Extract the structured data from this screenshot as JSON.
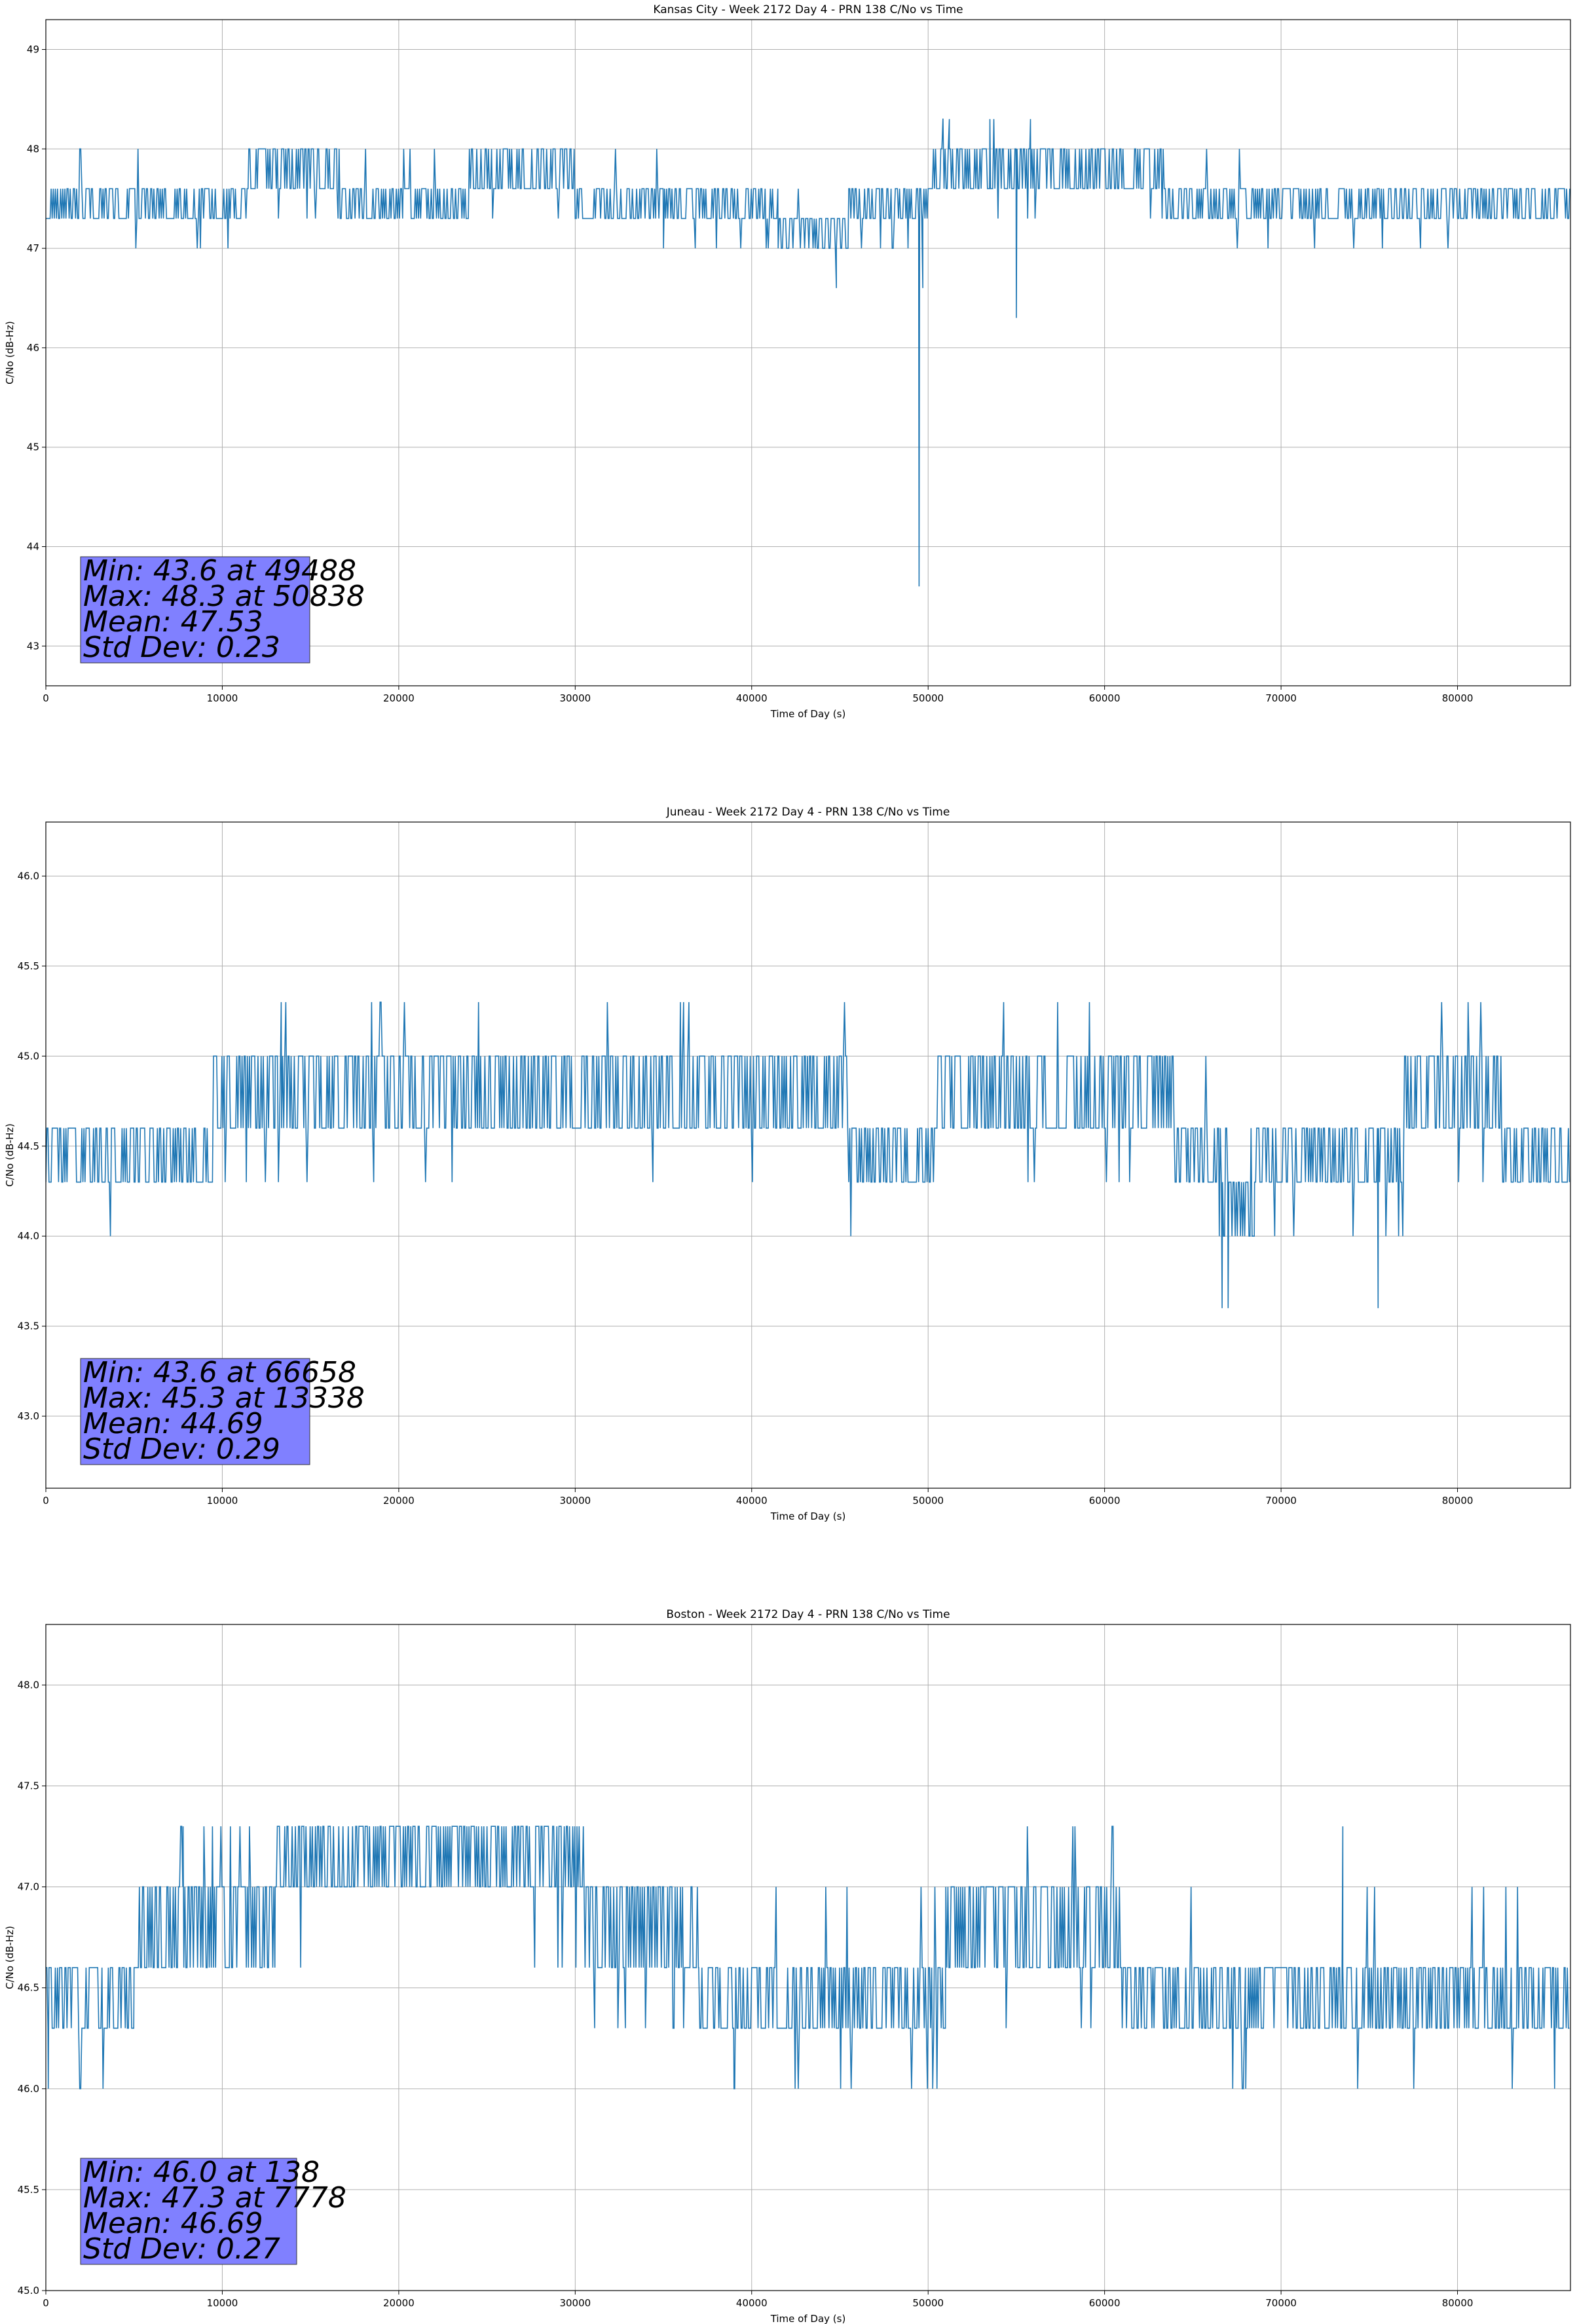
{
  "figure": {
    "line_color": "#1f77b4",
    "stats_box_color": "#8080ff"
  },
  "chart_data": [
    {
      "type": "line",
      "title": "Kansas City - Week 2172 Day 4 - PRN 138 C/No vs Time",
      "xlabel": "Time of Day (s)",
      "ylabel": "C/No (dB-Hz)",
      "xlim": [
        0,
        86400
      ],
      "ylim": [
        42.6,
        49.3
      ],
      "xticks": [
        0,
        10000,
        20000,
        30000,
        40000,
        50000,
        60000,
        70000,
        80000
      ],
      "xtick_labels": [
        "0",
        "10000",
        "20000",
        "30000",
        "40000",
        "50000",
        "60000",
        "70000",
        "80000"
      ],
      "yticks": [
        43,
        44,
        45,
        46,
        47,
        48,
        49
      ],
      "ytick_labels": [
        "43",
        "44",
        "45",
        "46",
        "47",
        "48",
        "49"
      ],
      "grid": true,
      "series": [
        {
          "color": "#1f77b4",
          "segments": [
            {
              "x": [
                0,
                11500
              ],
              "levels": [
                47.3,
                47.6
              ],
              "jumps_to": [
                47.0,
                48.0
              ]
            },
            {
              "x": [
                11500,
                16500
              ],
              "levels": [
                47.6,
                48.0
              ],
              "jumps_to": [
                47.3
              ]
            },
            {
              "x": [
                16500,
                24000
              ],
              "levels": [
                47.3,
                47.6
              ],
              "jumps_to": [
                48.0
              ]
            },
            {
              "x": [
                24000,
                30000
              ],
              "levels": [
                47.6,
                48.0
              ],
              "jumps_to": [
                47.3
              ]
            },
            {
              "x": [
                30000,
                35000
              ],
              "levels": [
                47.3,
                47.6
              ],
              "jumps_to": [
                48.0
              ]
            },
            {
              "x": [
                35000,
                41500
              ],
              "levels": [
                47.3,
                47.6
              ],
              "jumps_to": [
                47.0
              ]
            },
            {
              "x": [
                41500,
                45500
              ],
              "levels": [
                47.0,
                47.3
              ],
              "jumps_to": [
                47.6
              ]
            },
            {
              "x": [
                45500,
                50000
              ],
              "levels": [
                47.3,
                47.6
              ],
              "jumps_to": [
                47.0
              ]
            },
            {
              "x": [
                50000,
                63500
              ],
              "levels": [
                47.6,
                48.0
              ],
              "jumps_to": [
                47.3,
                48.3
              ]
            },
            {
              "x": [
                63500,
                86400
              ],
              "levels": [
                47.3,
                47.6
              ],
              "jumps_to": [
                47.0,
                48.0
              ]
            }
          ],
          "spikes": [
            {
              "x": 44800,
              "y": 46.6
            },
            {
              "x": 49488,
              "y": 43.6
            },
            {
              "x": 49700,
              "y": 46.6
            },
            {
              "x": 50838,
              "y": 48.3
            },
            {
              "x": 51200,
              "y": 48.3
            },
            {
              "x": 53500,
              "y": 48.3
            },
            {
              "x": 55000,
              "y": 46.3
            },
            {
              "x": 55800,
              "y": 48.3
            }
          ]
        }
      ],
      "annotations": [
        "Min: 43.6 at 49488",
        "Max: 48.3 at 50838",
        "Mean: 47.53",
        "Std Dev: 0.23"
      ]
    },
    {
      "type": "line",
      "title": "Juneau - Week 2172 Day 4 - PRN 138 C/No vs Time",
      "xlabel": "Time of Day (s)",
      "ylabel": "C/No (dB-Hz)",
      "xlim": [
        0,
        86400
      ],
      "ylim": [
        42.6,
        46.3
      ],
      "xticks": [
        0,
        10000,
        20000,
        30000,
        40000,
        50000,
        60000,
        70000,
        80000
      ],
      "xtick_labels": [
        "0",
        "10000",
        "20000",
        "30000",
        "40000",
        "50000",
        "60000",
        "70000",
        "80000"
      ],
      "yticks": [
        43.0,
        43.5,
        44.0,
        44.5,
        45.0,
        45.5,
        46.0
      ],
      "ytick_labels": [
        "43.0",
        "43.5",
        "44.0",
        "44.5",
        "45.0",
        "45.5",
        "46.0"
      ],
      "grid": true,
      "series": [
        {
          "color": "#1f77b4",
          "segments": [
            {
              "x": [
                0,
                5000
              ],
              "levels": [
                44.3,
                44.6
              ],
              "jumps_to": [
                44.0,
                45.0
              ]
            },
            {
              "x": [
                5000,
                9500
              ],
              "levels": [
                44.3,
                44.6
              ],
              "jumps_to": [
                45.0
              ]
            },
            {
              "x": [
                9500,
                13000
              ],
              "levels": [
                44.6,
                45.0
              ],
              "jumps_to": [
                44.3
              ]
            },
            {
              "x": [
                13000,
                29000
              ],
              "levels": [
                44.6,
                45.0
              ],
              "jumps_to": [
                45.3,
                44.3
              ]
            },
            {
              "x": [
                29000,
                45500
              ],
              "levels": [
                44.6,
                45.0
              ],
              "jumps_to": [
                44.3,
                45.3
              ]
            },
            {
              "x": [
                45500,
                50500
              ],
              "levels": [
                44.3,
                44.6
              ],
              "jumps_to": [
                45.0,
                44.0
              ]
            },
            {
              "x": [
                50500,
                64000
              ],
              "levels": [
                44.6,
                45.0
              ],
              "jumps_to": [
                45.3,
                44.3
              ]
            },
            {
              "x": [
                64000,
                66500
              ],
              "levels": [
                44.3,
                44.6
              ],
              "jumps_to": [
                45.0
              ]
            },
            {
              "x": [
                66500,
                68500
              ],
              "levels": [
                44.0,
                44.3
              ],
              "jumps_to": [
                44.6
              ]
            },
            {
              "x": [
                68500,
                77000
              ],
              "levels": [
                44.3,
                44.6
              ],
              "jumps_to": [
                44.0,
                45.0
              ]
            },
            {
              "x": [
                77000,
                82500
              ],
              "levels": [
                44.6,
                45.0
              ],
              "jumps_to": [
                45.3,
                44.3
              ]
            },
            {
              "x": [
                82500,
                86400
              ],
              "levels": [
                44.3,
                44.6
              ],
              "jumps_to": [
                45.0,
                44.0
              ]
            }
          ],
          "spikes": [
            {
              "x": 13338,
              "y": 45.3
            },
            {
              "x": 66658,
              "y": 43.6
            },
            {
              "x": 67000,
              "y": 43.6
            },
            {
              "x": 75500,
              "y": 43.6
            }
          ]
        }
      ],
      "annotations": [
        "Min: 43.6 at 66658",
        "Max: 45.3 at 13338",
        "Mean: 44.69",
        "Std Dev: 0.29"
      ]
    },
    {
      "type": "line",
      "title": "Boston - Week 2172 Day 4 - PRN 138 C/No vs Time",
      "xlabel": "Time of Day (s)",
      "ylabel": "C/No (dB-Hz)",
      "xlim": [
        0,
        86400
      ],
      "ylim": [
        45.0,
        48.3
      ],
      "xticks": [
        0,
        10000,
        20000,
        30000,
        40000,
        50000,
        60000,
        70000,
        80000
      ],
      "xtick_labels": [
        "0",
        "10000",
        "20000",
        "30000",
        "40000",
        "50000",
        "60000",
        "70000",
        "80000"
      ],
      "yticks": [
        45.0,
        45.5,
        46.0,
        46.5,
        47.0,
        47.5,
        48.0
      ],
      "ytick_labels": [
        "45.0",
        "45.5",
        "46.0",
        "46.5",
        "47.0",
        "47.5",
        "48.0"
      ],
      "grid": true,
      "series": [
        {
          "color": "#1f77b4",
          "segments": [
            {
              "x": [
                0,
                5000
              ],
              "levels": [
                46.3,
                46.6
              ],
              "jumps_to": [
                46.0,
                47.0
              ]
            },
            {
              "x": [
                5000,
                13000
              ],
              "levels": [
                46.6,
                47.0
              ],
              "jumps_to": [
                47.3
              ]
            },
            {
              "x": [
                13000,
                30500
              ],
              "levels": [
                47.0,
                47.3
              ],
              "jumps_to": [
                46.6
              ]
            },
            {
              "x": [
                30500,
                37000
              ],
              "levels": [
                46.6,
                47.0
              ],
              "jumps_to": [
                46.3
              ]
            },
            {
              "x": [
                37000,
                51000
              ],
              "levels": [
                46.3,
                46.6
              ],
              "jumps_to": [
                46.0,
                47.0
              ]
            },
            {
              "x": [
                51000,
                61000
              ],
              "levels": [
                46.6,
                47.0
              ],
              "jumps_to": [
                47.3,
                46.3
              ]
            },
            {
              "x": [
                61000,
                66000
              ],
              "levels": [
                46.3,
                46.6
              ],
              "jumps_to": [
                47.0
              ]
            },
            {
              "x": [
                66000,
                86400
              ],
              "levels": [
                46.3,
                46.6
              ],
              "jumps_to": [
                47.0,
                46.0
              ]
            }
          ],
          "spikes": [
            {
              "x": 138,
              "y": 46.0
            },
            {
              "x": 7778,
              "y": 47.3
            },
            {
              "x": 39000,
              "y": 46.0
            },
            {
              "x": 68000,
              "y": 46.0
            },
            {
              "x": 73500,
              "y": 47.3
            }
          ]
        }
      ],
      "annotations": [
        "Min: 46.0 at 138",
        "Max: 47.3 at 7778",
        "Mean: 46.69",
        "Std Dev: 0.27"
      ]
    }
  ]
}
